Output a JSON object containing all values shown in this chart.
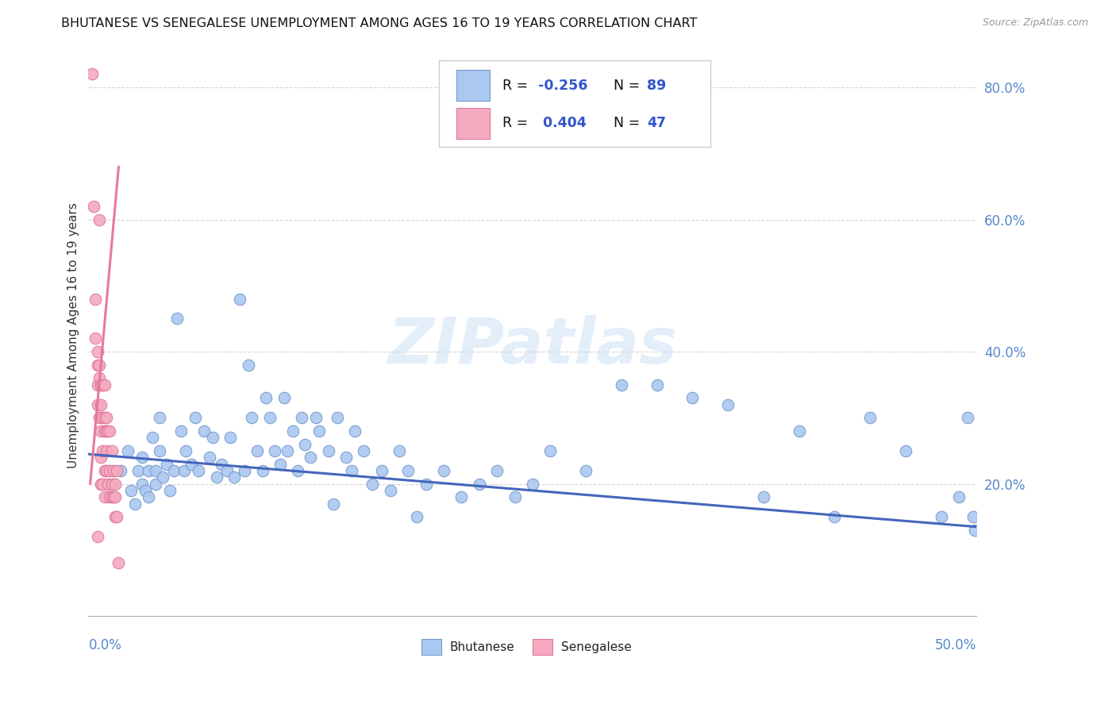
{
  "title": "BHUTANESE VS SENEGALESE UNEMPLOYMENT AMONG AGES 16 TO 19 YEARS CORRELATION CHART",
  "source": "Source: ZipAtlas.com",
  "ylabel": "Unemployment Among Ages 16 to 19 years",
  "xmin": 0.0,
  "xmax": 0.5,
  "ymin": 0.0,
  "ymax": 0.85,
  "yticks": [
    0.2,
    0.4,
    0.6,
    0.8
  ],
  "ytick_labels": [
    "20.0%",
    "40.0%",
    "60.0%",
    "80.0%"
  ],
  "blue_color": "#aac8f0",
  "pink_color": "#f5aabf",
  "blue_edge": "#7799cc",
  "pink_edge": "#dd7799",
  "trend_blue": "#4466bb",
  "trend_pink": "#e8789a",
  "R_blue": -0.256,
  "N_blue": 89,
  "R_pink": 0.404,
  "N_pink": 47,
  "legend_label_blue": "Bhutanese",
  "legend_label_pink": "Senegalese",
  "watermark": "ZIPatlas",
  "blue_scatter_x": [
    0.018,
    0.022,
    0.024,
    0.026,
    0.028,
    0.03,
    0.03,
    0.032,
    0.034,
    0.034,
    0.036,
    0.038,
    0.038,
    0.04,
    0.04,
    0.042,
    0.044,
    0.046,
    0.048,
    0.05,
    0.052,
    0.054,
    0.055,
    0.058,
    0.06,
    0.062,
    0.065,
    0.068,
    0.07,
    0.072,
    0.075,
    0.078,
    0.08,
    0.082,
    0.085,
    0.088,
    0.09,
    0.092,
    0.095,
    0.098,
    0.1,
    0.102,
    0.105,
    0.108,
    0.11,
    0.112,
    0.115,
    0.118,
    0.12,
    0.122,
    0.125,
    0.128,
    0.13,
    0.135,
    0.138,
    0.14,
    0.145,
    0.148,
    0.15,
    0.155,
    0.16,
    0.165,
    0.17,
    0.175,
    0.18,
    0.185,
    0.19,
    0.2,
    0.21,
    0.22,
    0.23,
    0.24,
    0.25,
    0.26,
    0.28,
    0.3,
    0.32,
    0.34,
    0.36,
    0.38,
    0.4,
    0.42,
    0.44,
    0.46,
    0.48,
    0.49,
    0.495,
    0.498,
    0.499
  ],
  "blue_scatter_y": [
    0.22,
    0.25,
    0.19,
    0.17,
    0.22,
    0.24,
    0.2,
    0.19,
    0.22,
    0.18,
    0.27,
    0.22,
    0.2,
    0.3,
    0.25,
    0.21,
    0.23,
    0.19,
    0.22,
    0.45,
    0.28,
    0.22,
    0.25,
    0.23,
    0.3,
    0.22,
    0.28,
    0.24,
    0.27,
    0.21,
    0.23,
    0.22,
    0.27,
    0.21,
    0.48,
    0.22,
    0.38,
    0.3,
    0.25,
    0.22,
    0.33,
    0.3,
    0.25,
    0.23,
    0.33,
    0.25,
    0.28,
    0.22,
    0.3,
    0.26,
    0.24,
    0.3,
    0.28,
    0.25,
    0.17,
    0.3,
    0.24,
    0.22,
    0.28,
    0.25,
    0.2,
    0.22,
    0.19,
    0.25,
    0.22,
    0.15,
    0.2,
    0.22,
    0.18,
    0.2,
    0.22,
    0.18,
    0.2,
    0.25,
    0.22,
    0.35,
    0.35,
    0.33,
    0.32,
    0.18,
    0.28,
    0.15,
    0.3,
    0.25,
    0.15,
    0.18,
    0.3,
    0.15,
    0.13
  ],
  "pink_scatter_x": [
    0.002,
    0.003,
    0.004,
    0.004,
    0.005,
    0.005,
    0.005,
    0.005,
    0.005,
    0.006,
    0.006,
    0.006,
    0.006,
    0.007,
    0.007,
    0.007,
    0.007,
    0.007,
    0.008,
    0.008,
    0.008,
    0.008,
    0.009,
    0.009,
    0.009,
    0.009,
    0.009,
    0.01,
    0.01,
    0.01,
    0.01,
    0.011,
    0.011,
    0.012,
    0.012,
    0.012,
    0.013,
    0.013,
    0.013,
    0.014,
    0.014,
    0.015,
    0.015,
    0.015,
    0.016,
    0.016,
    0.017
  ],
  "pink_scatter_y": [
    0.82,
    0.62,
    0.48,
    0.42,
    0.4,
    0.38,
    0.35,
    0.32,
    0.12,
    0.6,
    0.38,
    0.36,
    0.3,
    0.35,
    0.32,
    0.28,
    0.24,
    0.2,
    0.35,
    0.3,
    0.25,
    0.2,
    0.35,
    0.3,
    0.28,
    0.22,
    0.18,
    0.3,
    0.28,
    0.25,
    0.22,
    0.28,
    0.2,
    0.28,
    0.22,
    0.18,
    0.25,
    0.2,
    0.18,
    0.22,
    0.18,
    0.2,
    0.18,
    0.15,
    0.22,
    0.15,
    0.08
  ],
  "blue_trend_x": [
    0.0,
    0.5
  ],
  "blue_trend_y": [
    0.245,
    0.135
  ],
  "pink_trend_x": [
    0.001,
    0.017
  ],
  "pink_trend_y": [
    0.2,
    0.68
  ]
}
